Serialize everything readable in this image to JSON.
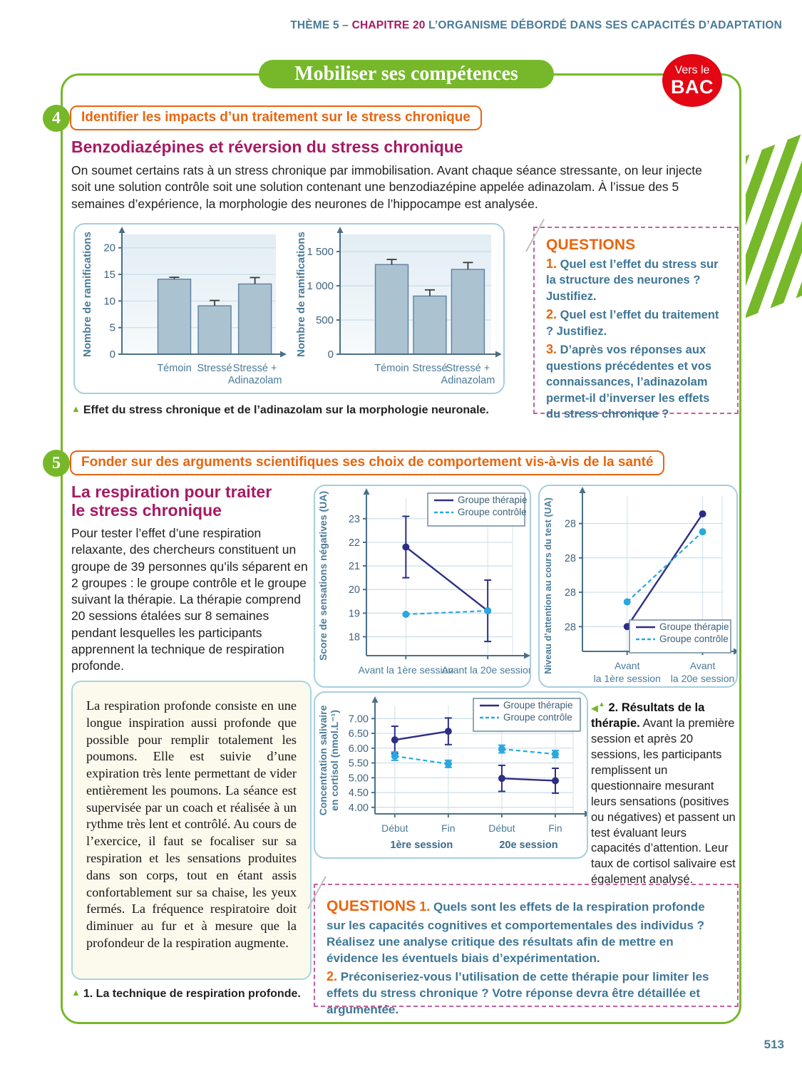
{
  "header": {
    "theme": "THÈME 5 – ",
    "chapter": "CHAPITRE 20",
    "title": " L’ORGANISME DÉBORDÉ DANS SES CAPACITÉS D’ADAPTATION"
  },
  "banner": {
    "title": "Mobiliser ses compétences"
  },
  "badge": {
    "line1": "Vers le",
    "line2": "BAC"
  },
  "page": {
    "number": "513"
  },
  "icons": {
    "triangle_up": "▲",
    "triangle_left": "◀"
  },
  "colors": {
    "green": "#76b82a",
    "orange": "#e8650f",
    "magenta": "#a61a63",
    "red": "#e30613",
    "question_blue": "#3e7695",
    "navy": "#2d2e83",
    "light_blue": "#29a8df",
    "panel_border": "#a6cfdf",
    "dashed_pink": "#c75f9e"
  },
  "exercise4": {
    "number": "4",
    "competence": "Identifier les impacts d’un traitement sur le stress chronique",
    "title": "Benzodiazépines et réversion du stress chronique",
    "intro": "On soumet certains rats à un stress chronique par immobilisation. Avant chaque séance stressante, on leur injecte soit une solution contrôle soit une solution contenant une benzodiazépine appelée adinazolam. À l’issue des 5 semaines d’expérience, la morphologie des neurones de l’hippocampe est analysée.",
    "figure_caption": "Effet du stress chronique et de l’adinazolam sur la morphologie neuronale.",
    "questions_title": "QUESTIONS",
    "questions": [
      {
        "num": "1.",
        "text": "Quel est l’effet du stress sur la structure des neurones ? Justifiez."
      },
      {
        "num": "2.",
        "text": "Quel est l’effet du traitement ? Justifiez."
      },
      {
        "num": "3.",
        "text": "D’après vos réponses aux questions précédentes et vos connaissances, l’adinazolam permet-il d’inverser les effets du stress chronique ?"
      }
    ]
  },
  "exercise5": {
    "number": "5",
    "competence": "Fonder sur des arguments scientifiques ses choix de comportement vis-à-vis de la santé",
    "title": "La respiration pour traiter\nle stress chronique",
    "intro": "Pour tester l’effet d’une respiration relaxante, des chercheurs constituent un groupe de 39 personnes qu’ils séparent en 2 groupes : le groupe contrôle et le groupe suivant la thérapie. La thérapie comprend 20 sessions étalées sur 8 semaines pendant lesquelles les participants apprennent la technique de respiration profonde.",
    "doc1_text": "La respiration profonde consiste en une longue inspiration aussi profonde que possible pour remplir totalement les poumons. Elle est suivie d’une expiration très lente permettant de vider entièrement les poumons. La séance est supervisée par un coach et réalisée à un rythme très lent et contrôlé. Au cours de l’exercice, il faut se focaliser sur sa respiration et les sensations produites dans son corps, tout en étant assis confortablement sur sa chaise, les yeux fermés. La fréquence respiratoire doit diminuer au fur et à mesure que la profondeur de la respiration augmente.",
    "doc1_caption": "1. La technique de respiration profonde.",
    "doc2_caption_bold": "2. Résultats de la thérapie.",
    "doc2_caption_rest": " Avant la première session et après 20 sessions, les participants remplissent un questionnaire mesurant leurs sensations (positives ou négatives) et passent un test évaluant leurs capacités d’attention. Leur taux de cortisol salivaire est également analysé.",
    "questions_title": "QUESTIONS",
    "questions": [
      {
        "num": "1.",
        "text": "Quels sont les effets de la respiration profonde sur les capacités cognitives et comportementales des individus ? Réalisez une analyse critique des résultats afin de mettre en évidence les éventuels biais d’expérimentation."
      },
      {
        "num": "2.",
        "text": "Préconiseriez-vous l’utilisation de cette thérapie pour limiter les effets du stress chronique ? Votre réponse devra être détaillée et argumentée."
      }
    ]
  },
  "chart_data": [
    {
      "id": "ramifications-chart-1",
      "type": "bar",
      "ylabel": "Nombre de ramifications",
      "categories": [
        "Témoin",
        "Stressé",
        "Stressé +\nAdinazolam"
      ],
      "values": [
        14.1,
        9.1,
        13.2
      ],
      "errors": [
        0.35,
        1.0,
        1.2
      ],
      "yticks": [
        {
          "value": 0,
          "label": "0"
        },
        {
          "value": 5,
          "label": "5"
        },
        {
          "value": 10,
          "label": "10"
        },
        {
          "value": 15,
          "label": "15"
        },
        {
          "value": 20,
          "label": "20"
        }
      ],
      "ymax": 22.5,
      "grid": true,
      "legend_position": "none"
    },
    {
      "id": "ramifications-chart-2",
      "type": "bar",
      "ylabel": "Nombre de ramifications",
      "categories": [
        "Témoin",
        "Stressé",
        "Stressé +\nAdinazolam"
      ],
      "values": [
        1310,
        850,
        1240
      ],
      "errors": [
        75,
        90,
        100
      ],
      "yticks": [
        {
          "value": 0,
          "label": "0"
        },
        {
          "value": 500,
          "label": "500"
        },
        {
          "value": 1000,
          "label": "1 000"
        },
        {
          "value": 1500,
          "label": "1 500"
        }
      ],
      "ymax": 1750,
      "grid": true,
      "legend_position": "none"
    },
    {
      "id": "sensations-chart",
      "type": "line",
      "ylabel": "Score de sensations négatives (UA)",
      "x_labels": [
        "Avant la 1ère session",
        "Avant la 20e session"
      ],
      "yticks": [
        {
          "value": 18,
          "label": "18"
        },
        {
          "value": 19,
          "label": "19"
        },
        {
          "value": 20,
          "label": "20"
        },
        {
          "value": 21,
          "label": "21"
        },
        {
          "value": 22,
          "label": "22"
        },
        {
          "value": 23,
          "label": "23"
        }
      ],
      "ylim": [
        17.2,
        23.9
      ],
      "grid": true,
      "legend_position": "top-right",
      "series": [
        {
          "name": "Groupe thérapie",
          "style": "solid",
          "color": "#2d2e83",
          "values": [
            21.8,
            19.1
          ],
          "errors": [
            1.3,
            1.3
          ]
        },
        {
          "name": "Groupe contrôle",
          "style": "dashed",
          "color": "#29a8df",
          "values": [
            18.95,
            19.1
          ],
          "errors": [
            0,
            0
          ]
        }
      ]
    },
    {
      "id": "attention-chart",
      "type": "line",
      "ylabel": "Niveau d’attention au cours du test (UA)",
      "x_labels": [
        "Avant\nla 1ère session",
        "Avant\nla 20e session"
      ],
      "yticks": [
        {
          "value": 27.9,
          "label": "28"
        },
        {
          "value": 28.15,
          "label": "28"
        },
        {
          "value": 28.4,
          "label": "28"
        },
        {
          "value": 28.65,
          "label": "28"
        }
      ],
      "ylim": [
        27.72,
        28.85
      ],
      "grid": true,
      "legend_position": "bottom-right",
      "note": "printed axis tick labels all read 28",
      "series": [
        {
          "name": "Groupe thérapie",
          "style": "solid",
          "color": "#2d2e83",
          "values": [
            27.9,
            28.72
          ],
          "errors": [
            0,
            0
          ]
        },
        {
          "name": "Groupe contrôle",
          "style": "dashed",
          "color": "#29a8df",
          "values": [
            28.08,
            28.59
          ],
          "errors": [
            0,
            0
          ]
        }
      ]
    },
    {
      "id": "cortisol-chart",
      "type": "line",
      "ylabel_lines": [
        "Concentration salivaire",
        "en cortisol (nmol.L⁻¹)"
      ],
      "x_labels": [
        "Début",
        "Fin",
        "Début",
        "Fin"
      ],
      "group_labels": [
        "1ère session",
        "20e session"
      ],
      "yticks": [
        {
          "value": 4,
          "label": "4.00"
        },
        {
          "value": 4.5,
          "label": "4.50"
        },
        {
          "value": 5,
          "label": "5.00"
        },
        {
          "value": 5.5,
          "label": "5.50"
        },
        {
          "value": 6,
          "label": "6.00"
        },
        {
          "value": 6.5,
          "label": "6.50"
        },
        {
          "value": 7,
          "label": "7.00"
        }
      ],
      "ylim": [
        3.78,
        7.44
      ],
      "grid": true,
      "legend_position": "top-right",
      "segments": [
        [
          0,
          1
        ],
        [
          2,
          3
        ]
      ],
      "series": [
        {
          "name": "Groupe thérapie",
          "style": "solid",
          "color": "#2d2e83",
          "values": [
            6.28,
            6.57,
            4.98,
            4.9
          ],
          "errors": [
            0.46,
            0.45,
            0.44,
            0.42
          ]
        },
        {
          "name": "Groupe contrôle",
          "style": "dashed",
          "color": "#29a8df",
          "values": [
            5.73,
            5.47,
            5.97,
            5.8
          ],
          "errors": [
            0.14,
            0.12,
            0.13,
            0.12
          ]
        }
      ]
    }
  ]
}
